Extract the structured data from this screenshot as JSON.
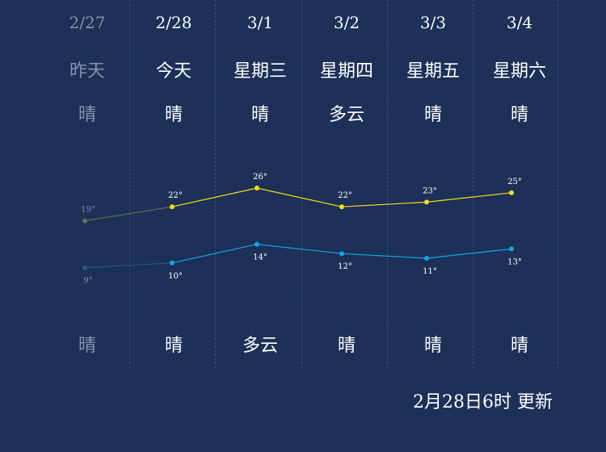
{
  "days": [
    {
      "date": "2/27",
      "week": "昨天",
      "day_weather": "晴",
      "night_weather": "晴",
      "high": 19,
      "low": 9,
      "high_label": "19°",
      "low_label": "9°",
      "past": true
    },
    {
      "date": "2/28",
      "week": "今天",
      "day_weather": "晴",
      "night_weather": "晴",
      "high": 22,
      "low": 10,
      "high_label": "22°",
      "low_label": "10°",
      "past": false
    },
    {
      "date": "3/1",
      "week": "星期三",
      "day_weather": "晴",
      "night_weather": "多云",
      "high": 26,
      "low": 14,
      "high_label": "26°",
      "low_label": "14°",
      "past": false
    },
    {
      "date": "3/2",
      "week": "星期四",
      "day_weather": "多云",
      "night_weather": "晴",
      "high": 22,
      "low": 12,
      "high_label": "22°",
      "low_label": "12°",
      "past": false
    },
    {
      "date": "3/3",
      "week": "星期五",
      "day_weather": "晴",
      "night_weather": "晴",
      "high": 23,
      "low": 11,
      "high_label": "23°",
      "low_label": "11°",
      "past": false
    },
    {
      "date": "3/4",
      "week": "星期六",
      "day_weather": "晴",
      "night_weather": "晴",
      "high": 25,
      "low": 13,
      "high_label": "25°",
      "low_label": "13°",
      "past": false
    }
  ],
  "update_text": "2月28日6时 更新",
  "colors": {
    "background": "#1c3058",
    "high_line": "#f5dc1e",
    "low_line": "#1aa3e8",
    "past_high": "#6e6e4e",
    "past_low": "#1e5a8a",
    "past_text": "#8593ad"
  },
  "chart_data": {
    "type": "line",
    "categories": [
      "2/27",
      "2/28",
      "3/1",
      "3/2",
      "3/3",
      "3/4"
    ],
    "series": [
      {
        "values": [
          19,
          22,
          26,
          22,
          23,
          25
        ]
      },
      {
        "values": [
          9,
          10,
          14,
          12,
          11,
          13
        ]
      }
    ]
  }
}
